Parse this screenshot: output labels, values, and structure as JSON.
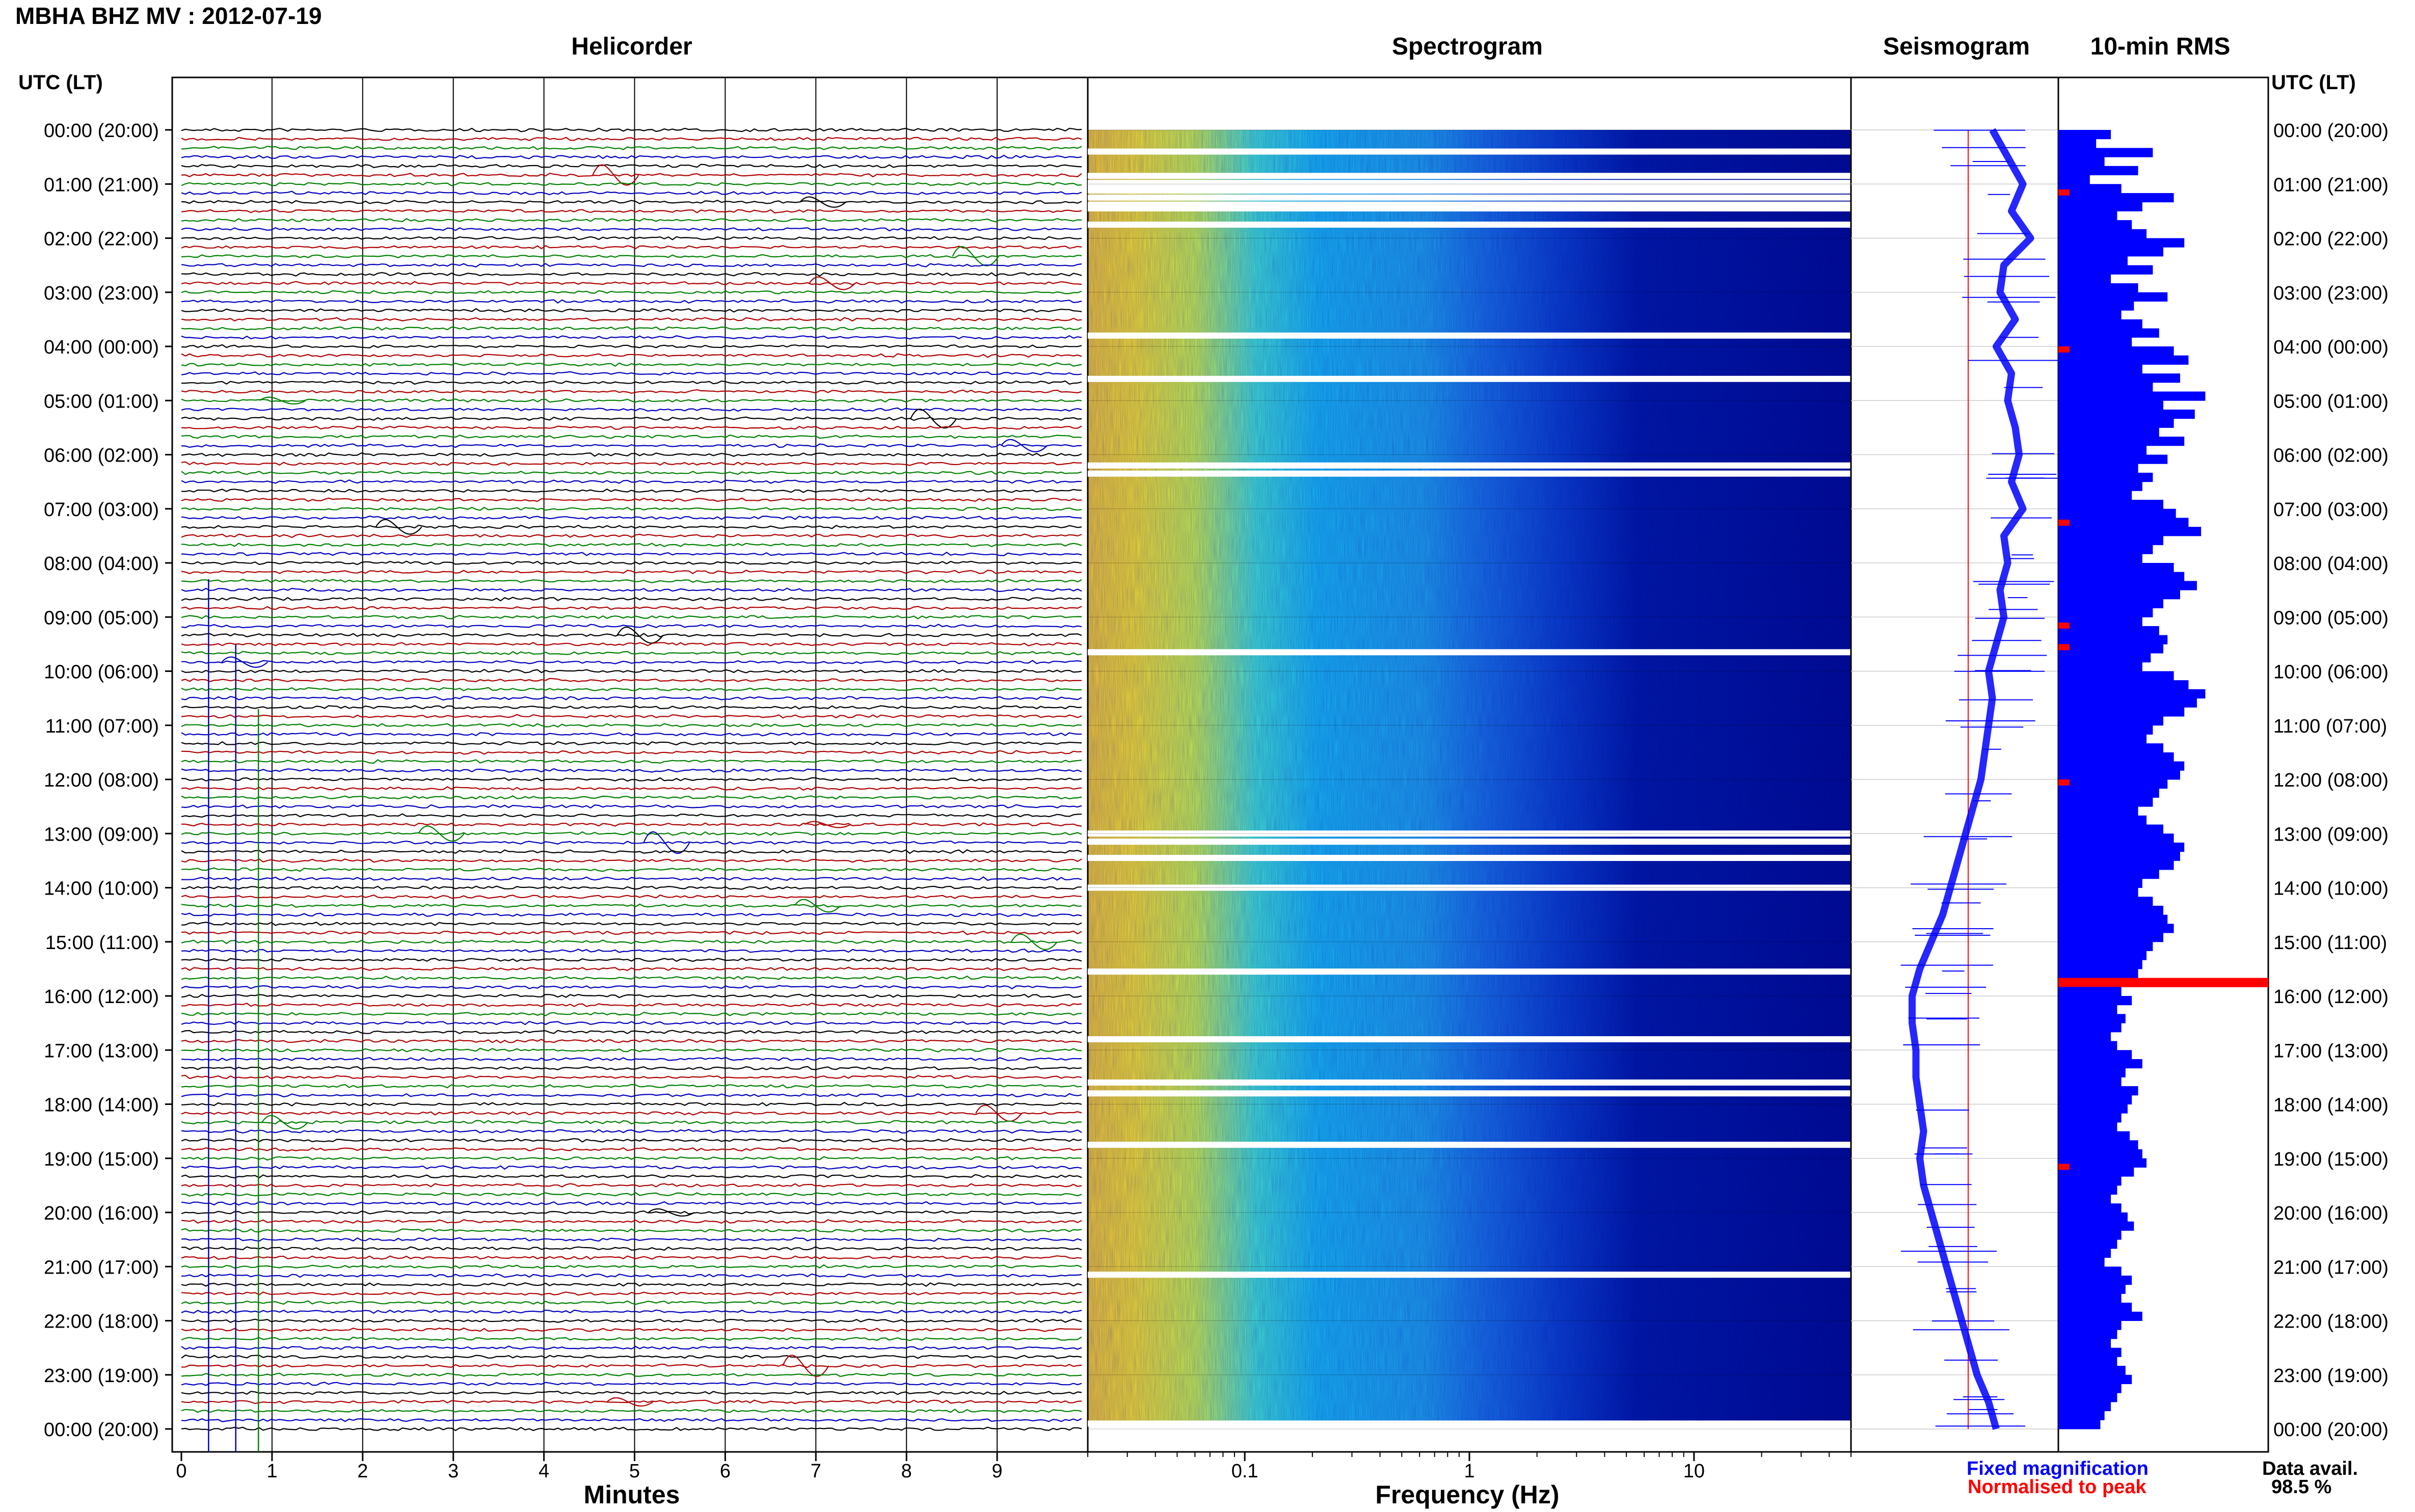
{
  "header": {
    "title": "MBHA BHZ MV : 2012-07-19"
  },
  "panels": {
    "helicorder": "Helicorder",
    "spectrogram": "Spectrogram",
    "seismogram": "Seismogram",
    "rms": "10-min RMS"
  },
  "axes": {
    "left_time_heading": "UTC (LT)",
    "right_time_heading": "UTC (LT)",
    "helicorder_xlabel": "Minutes",
    "spectrogram_xlabel": "Frequency (Hz)"
  },
  "legend": {
    "fixed": "Fixed magnification",
    "normalised": "Normalised to peak",
    "data_avail_label": "Data avail.",
    "data_avail_value": "98.5 %"
  },
  "colors": {
    "fixed": "#0000ff",
    "normalised": "#ff0000",
    "rms_bar": "#0000ff",
    "rms_peak": "#ff0000",
    "trace_cycle": [
      "#000000",
      "#b00000",
      "#008000",
      "#0000c0"
    ]
  },
  "chart_data": [
    {
      "type": "line",
      "name": "helicorder",
      "x_unit": "minutes",
      "xlim": [
        0,
        10
      ],
      "x_ticks": [
        "0",
        "1",
        "2",
        "3",
        "4",
        "5",
        "6",
        "7",
        "8",
        "9"
      ],
      "y_ticks": [
        "00:00 (20:00)",
        "01:00 (21:00)",
        "02:00 (22:00)",
        "03:00 (23:00)",
        "04:00 (00:00)",
        "05:00 (01:00)",
        "06:00 (02:00)",
        "07:00 (03:00)",
        "08:00 (04:00)",
        "09:00 (05:00)",
        "10:00 (06:00)",
        "11:00 (07:00)",
        "12:00 (08:00)",
        "13:00 (09:00)",
        "14:00 (10:00)",
        "15:00 (11:00)",
        "16:00 (12:00)",
        "17:00 (13:00)",
        "18:00 (14:00)",
        "19:00 (15:00)",
        "20:00 (16:00)",
        "21:00 (17:00)",
        "22:00 (18:00)",
        "23:00 (19:00)",
        "00:00 (20:00)"
      ],
      "traces_per_hour": 6
    },
    {
      "type": "heatmap",
      "name": "spectrogram",
      "x_scale": "log",
      "xlim": [
        0.02,
        50
      ],
      "x_ticks": [
        "0.1",
        "1",
        "10"
      ],
      "gaps_hours": [
        0.4,
        0.85,
        0.98,
        1.07,
        1.12,
        1.25,
        1.38,
        1.45,
        1.75,
        3.8,
        4.6,
        6.2,
        6.35,
        9.65,
        13.0,
        13.15,
        13.45,
        14.0,
        15.55,
        16.8,
        17.6,
        17.8,
        18.75,
        21.15,
        23.9
      ]
    },
    {
      "type": "line",
      "name": "seismogram",
      "series": [
        {
          "name": "Fixed magnification",
          "x_hours": [
            0.0,
            0.5,
            1.0,
            1.5,
            2.0,
            2.5,
            3.0,
            3.5,
            4.0,
            4.5,
            5.0,
            5.5,
            6.0,
            6.5,
            7.0,
            7.5,
            8.0,
            8.5,
            9.0,
            9.5,
            10.0,
            10.5,
            11.0,
            11.5,
            12.0,
            12.5,
            13.0,
            13.5,
            14.0,
            14.5,
            15.0,
            15.5,
            16.0,
            16.5,
            17.0,
            17.5,
            18.0,
            18.5,
            19.0,
            19.5,
            20.0,
            20.5,
            21.0,
            21.5,
            22.0,
            22.5,
            23.0,
            23.5,
            24.0
          ],
          "values": [
            0.05,
            0.25,
            0.45,
            0.3,
            0.55,
            0.2,
            0.15,
            0.35,
            0.1,
            0.3,
            0.25,
            0.35,
            0.4,
            0.3,
            0.45,
            0.2,
            0.25,
            0.15,
            0.2,
            0.1,
            0.0,
            0.05,
            0.0,
            -0.05,
            -0.1,
            -0.2,
            -0.3,
            -0.4,
            -0.5,
            -0.6,
            -0.75,
            -0.9,
            -1.0,
            -1.0,
            -0.95,
            -0.95,
            -0.9,
            -0.85,
            -0.9,
            -0.85,
            -0.75,
            -0.65,
            -0.55,
            -0.45,
            -0.35,
            -0.25,
            -0.15,
            0.0,
            0.1
          ]
        }
      ]
    },
    {
      "type": "bar",
      "name": "rms",
      "orientation": "horizontal",
      "bin_minutes": 10,
      "values": [
        0.25,
        0.18,
        0.45,
        0.22,
        0.38,
        0.15,
        0.3,
        0.55,
        0.4,
        0.28,
        0.35,
        0.42,
        0.6,
        0.5,
        0.33,
        0.45,
        0.25,
        0.38,
        0.52,
        0.36,
        0.3,
        0.4,
        0.48,
        0.35,
        0.55,
        0.62,
        0.4,
        0.58,
        0.45,
        0.7,
        0.5,
        0.65,
        0.55,
        0.48,
        0.6,
        0.42,
        0.52,
        0.38,
        0.45,
        0.4,
        0.35,
        0.5,
        0.56,
        0.62,
        0.68,
        0.5,
        0.45,
        0.4,
        0.55,
        0.6,
        0.66,
        0.58,
        0.5,
        0.45,
        0.4,
        0.48,
        0.52,
        0.5,
        0.44,
        0.4,
        0.55,
        0.62,
        0.7,
        0.66,
        0.6,
        0.5,
        0.45,
        0.42,
        0.5,
        0.55,
        0.6,
        0.58,
        0.52,
        0.48,
        0.45,
        0.38,
        0.42,
        0.5,
        0.55,
        0.6,
        0.58,
        0.55,
        0.48,
        0.4,
        0.38,
        0.45,
        0.5,
        0.52,
        0.55,
        0.5,
        0.45,
        0.42,
        0.4,
        0.38,
        1.0,
        0.3,
        0.35,
        0.28,
        0.32,
        0.3,
        0.25,
        0.28,
        0.35,
        0.4,
        0.32,
        0.3,
        0.38,
        0.35,
        0.33,
        0.3,
        0.28,
        0.34,
        0.38,
        0.4,
        0.42,
        0.36,
        0.3,
        0.28,
        0.25,
        0.3,
        0.33,
        0.36,
        0.3,
        0.28,
        0.25,
        0.22,
        0.3,
        0.35,
        0.32,
        0.3,
        0.35,
        0.4,
        0.3,
        0.28,
        0.25,
        0.3,
        0.28,
        0.32,
        0.35,
        0.3,
        0.28,
        0.25,
        0.22,
        0.2
      ]
    }
  ]
}
